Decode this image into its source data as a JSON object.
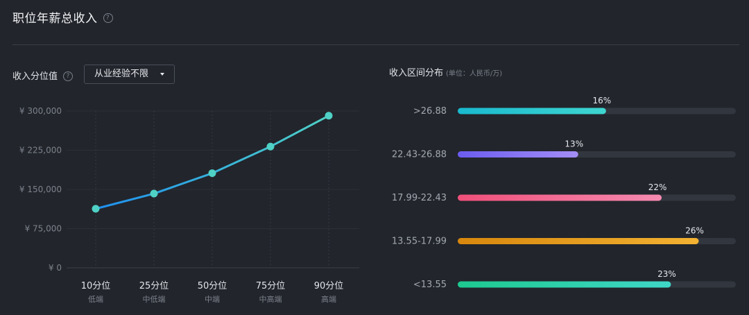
{
  "header": {
    "title": "职位年薪总收入",
    "help_icon": "?"
  },
  "left": {
    "label": "收入分位值",
    "help_icon": "?",
    "select": {
      "value": "从业经验不限"
    }
  },
  "right": {
    "label": "收入区间分布",
    "unit": "(单位：人民币/万)"
  },
  "chart_data": [
    {
      "type": "line",
      "categories": [
        "10分位",
        "25分位",
        "50分位",
        "75分位",
        "90分位"
      ],
      "sublabels": [
        "低端",
        "中低端",
        "中端",
        "中高端",
        "高端"
      ],
      "values": [
        113000,
        142000,
        181000,
        232000,
        291000
      ],
      "yticks": [
        "¥ 0",
        "¥ 75,000",
        "¥ 150,000",
        "¥ 225,000",
        "¥ 300,000"
      ],
      "ylim": [
        0,
        300000
      ],
      "grid": true,
      "colors": [
        "#1e90f0",
        "#4fd1c5"
      ]
    },
    {
      "type": "bar",
      "orientation": "horizontal",
      "categories": [
        ">26.88",
        "22.43-26.88",
        "17.99-22.43",
        "13.55-17.99",
        "<13.55"
      ],
      "values": [
        16,
        13,
        22,
        26,
        23
      ],
      "labels": [
        "16%",
        "13%",
        "22%",
        "26%",
        "23%"
      ],
      "xlim": [
        0,
        30
      ],
      "track_color": "#32363e",
      "gradients": [
        [
          "#19b9cf",
          "#3fd6d0"
        ],
        [
          "#6b5cf0",
          "#a48ef5"
        ],
        [
          "#f0507a",
          "#f58ab0"
        ],
        [
          "#d7870d",
          "#f3b232"
        ],
        [
          "#1dc98f",
          "#3fd7c8"
        ]
      ]
    }
  ]
}
